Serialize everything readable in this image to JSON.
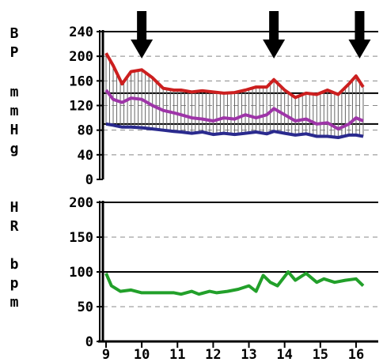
{
  "chart_data": [
    {
      "type": "line",
      "ylabel": "B P  m m H g",
      "ylabel_letters": [
        "B",
        "P",
        "m",
        "m",
        "H",
        "g"
      ],
      "ylim": [
        0,
        240
      ],
      "yticks": [
        "240",
        "200",
        "160",
        "120",
        "80",
        "40",
        "0"
      ],
      "ytick_values": [
        240,
        200,
        160,
        120,
        80,
        40,
        0
      ],
      "xlim": [
        9,
        16.4
      ],
      "grid": "dashed horizontal at every tick, solid lines at 240, 140, 90",
      "solid_reference_lines": [
        240,
        140,
        90
      ],
      "arrows_at_x": [
        10,
        13.7,
        16.1
      ],
      "series": [
        {
          "color": "#cc1f1f",
          "x": [
            9.0,
            9.2,
            9.45,
            9.7,
            10.0,
            10.3,
            10.6,
            10.9,
            11.1,
            11.4,
            11.7,
            12.0,
            12.3,
            12.6,
            12.9,
            13.2,
            13.5,
            13.7,
            14.0,
            14.3,
            14.6,
            14.9,
            15.2,
            15.5,
            15.8,
            16.0,
            16.2
          ],
          "values": [
            205,
            185,
            155,
            175,
            178,
            165,
            148,
            145,
            145,
            142,
            144,
            142,
            140,
            141,
            145,
            150,
            150,
            162,
            145,
            133,
            140,
            138,
            145,
            138,
            155,
            168,
            150
          ]
        },
        {
          "color": "#9e35a8",
          "x": [
            9.0,
            9.2,
            9.45,
            9.7,
            10.0,
            10.3,
            10.6,
            10.9,
            11.1,
            11.4,
            11.7,
            12.0,
            12.3,
            12.6,
            12.9,
            13.2,
            13.5,
            13.7,
            14.0,
            14.3,
            14.6,
            14.9,
            15.2,
            15.5,
            15.8,
            16.0,
            16.2
          ],
          "values": [
            145,
            130,
            125,
            132,
            130,
            120,
            112,
            108,
            105,
            100,
            98,
            95,
            100,
            98,
            105,
            100,
            105,
            115,
            105,
            95,
            98,
            90,
            92,
            82,
            90,
            100,
            95
          ]
        },
        {
          "color": "#2a2a8e",
          "x": [
            9.0,
            9.2,
            9.45,
            9.7,
            10.0,
            10.3,
            10.6,
            10.9,
            11.1,
            11.4,
            11.7,
            12.0,
            12.3,
            12.6,
            12.9,
            13.2,
            13.5,
            13.7,
            14.0,
            14.3,
            14.6,
            14.9,
            15.2,
            15.5,
            15.8,
            16.0,
            16.2
          ],
          "values": [
            90,
            88,
            85,
            85,
            84,
            82,
            80,
            78,
            77,
            75,
            77,
            73,
            75,
            73,
            75,
            77,
            74,
            78,
            75,
            72,
            74,
            70,
            70,
            68,
            72,
            72,
            70
          ]
        }
      ]
    },
    {
      "type": "line",
      "ylabel": "H R  b p m",
      "ylabel_letters": [
        "H",
        "R",
        "b",
        "p",
        "m"
      ],
      "ylim": [
        0,
        200
      ],
      "yticks": [
        "200",
        "150",
        "100",
        "50",
        "0"
      ],
      "ytick_values": [
        200,
        150,
        100,
        50,
        0
      ],
      "xlim": [
        9,
        16.4
      ],
      "xticks": [
        "9",
        "10",
        "11",
        "12",
        "13",
        "14",
        "15",
        "16"
      ],
      "xtick_values": [
        9,
        10,
        11,
        12,
        13,
        14,
        15,
        16
      ],
      "grid": "dashed horizontal at every tick, solid lines at 200 and 100",
      "solid_reference_lines": [
        200,
        100
      ],
      "series": [
        {
          "color": "#22a02a",
          "x": [
            9.0,
            9.15,
            9.4,
            9.7,
            10.0,
            10.3,
            10.6,
            10.9,
            11.1,
            11.4,
            11.6,
            11.9,
            12.1,
            12.4,
            12.7,
            13.0,
            13.2,
            13.4,
            13.6,
            13.8,
            14.1,
            14.3,
            14.6,
            14.9,
            15.1,
            15.4,
            15.7,
            16.0,
            16.2
          ],
          "values": [
            98,
            80,
            72,
            74,
            70,
            70,
            70,
            70,
            68,
            72,
            68,
            72,
            70,
            72,
            75,
            80,
            72,
            95,
            85,
            80,
            100,
            88,
            98,
            85,
            90,
            85,
            88,
            90,
            80
          ]
        }
      ]
    }
  ]
}
